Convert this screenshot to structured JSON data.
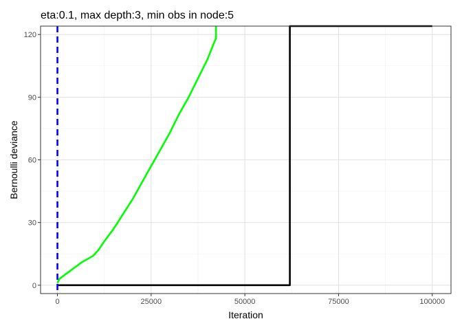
{
  "chart_data": {
    "type": "line",
    "title": "eta:0.1, max depth:3, min obs in node:5",
    "xlabel": "Iteration",
    "ylabel": "Bernoulli deviance",
    "xlim": [
      -4500,
      105000
    ],
    "ylim": [
      -4,
      124
    ],
    "x_ticks": [
      0,
      25000,
      50000,
      75000,
      100000
    ],
    "x_tick_labels": [
      "0",
      "25000",
      "50000",
      "75000",
      "100000"
    ],
    "y_ticks": [
      0,
      30,
      60,
      90,
      120
    ],
    "y_tick_labels": [
      "0",
      "30",
      "60",
      "90",
      "120"
    ],
    "grid": true,
    "series": [
      {
        "color": "#00ff00",
        "style": "solid",
        "x": [
          0,
          500,
          2000,
          3500,
          5000,
          6500,
          8000,
          9500,
          11000,
          12500,
          15000,
          17500,
          20000,
          22500,
          25000,
          27500,
          30000,
          32500,
          35000,
          37500,
          40000,
          42000,
          42300,
          42300
        ],
        "y": [
          1,
          3,
          5,
          7,
          9,
          11,
          12.5,
          14,
          17,
          21,
          27,
          34,
          41,
          49,
          57,
          65,
          73,
          82,
          90,
          99,
          108,
          117,
          118,
          124
        ]
      },
      {
        "color": "#000000",
        "style": "solid",
        "x": [
          0,
          62000,
          62000,
          62000,
          100000
        ],
        "y": [
          0,
          0,
          124,
          124,
          124
        ]
      }
    ],
    "vlines": [
      {
        "x": 0,
        "color": "#0000ff",
        "style": "dashed"
      }
    ]
  }
}
